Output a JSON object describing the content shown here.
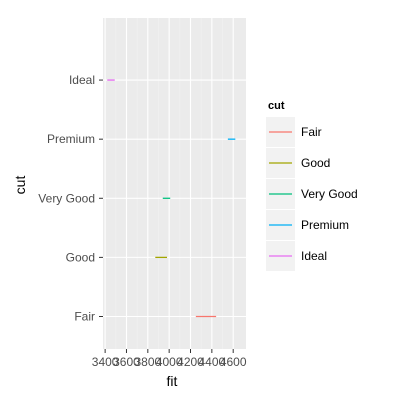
{
  "chart_data": {
    "type": "errorbar-horizontal",
    "title": "",
    "xlabel": "fit",
    "ylabel": "cut",
    "xlim": [
      3380,
      4720
    ],
    "x_ticks": [
      3400,
      3600,
      3800,
      4000,
      4200,
      4400,
      4600
    ],
    "x_tick_labels": [
      "3400",
      "3600",
      "3800",
      "4000",
      "4200",
      "4400",
      "4600"
    ],
    "categories": [
      "Fair",
      "Good",
      "Very Good",
      "Premium",
      "Ideal"
    ],
    "series": [
      {
        "name": "Fair",
        "xmin": 4250,
        "xmax": 4440,
        "color": "#F8766D"
      },
      {
        "name": "Good",
        "xmin": 3870,
        "xmax": 3980,
        "color": "#A3A500"
      },
      {
        "name": "Very Good",
        "xmin": 3940,
        "xmax": 4010,
        "color": "#00BF7D"
      },
      {
        "name": "Premium",
        "xmin": 4550,
        "xmax": 4620,
        "color": "#00B0F6"
      },
      {
        "name": "Ideal",
        "xmin": 3420,
        "xmax": 3490,
        "color": "#E76BF3"
      }
    ],
    "grid": true,
    "panel_background": "#EBEBEB",
    "legend": {
      "title": "cut",
      "position": "right",
      "entries": [
        "Fair",
        "Good",
        "Very Good",
        "Premium",
        "Ideal"
      ]
    }
  }
}
